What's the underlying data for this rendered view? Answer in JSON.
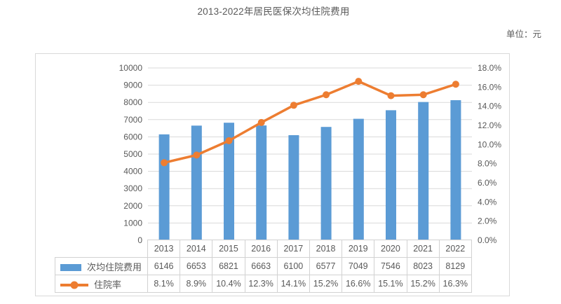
{
  "chart_data": {
    "type": "combo-bar-line",
    "title": "2013-2022年居民医保次均住院费用",
    "unit_label": "单位：元",
    "categories": [
      "2013",
      "2014",
      "2015",
      "2016",
      "2017",
      "2018",
      "2019",
      "2020",
      "2021",
      "2022"
    ],
    "series": [
      {
        "name": "次均住院费用",
        "type": "bar",
        "axis": "left",
        "color": "#5B9BD5",
        "values": [
          6146,
          6653,
          6821,
          6663,
          6100,
          6577,
          7049,
          7546,
          8023,
          8129
        ]
      },
      {
        "name": "住院率",
        "type": "line",
        "axis": "right",
        "color": "#ED7D31",
        "values": [
          8.1,
          8.9,
          10.4,
          12.3,
          14.1,
          15.2,
          16.6,
          15.1,
          15.2,
          16.3
        ],
        "labels": [
          "8.1%",
          "8.9%",
          "10.4%",
          "12.3%",
          "14.1%",
          "15.2%",
          "16.6%",
          "15.1%",
          "15.2%",
          "16.3%"
        ]
      }
    ],
    "left_axis": {
      "min": 0,
      "max": 10000,
      "step": 1000,
      "ticks": [
        "0",
        "1000",
        "2000",
        "3000",
        "4000",
        "5000",
        "6000",
        "7000",
        "8000",
        "9000",
        "10000"
      ]
    },
    "right_axis": {
      "min": 0,
      "max": 18,
      "step": 2,
      "ticks": [
        "0.0%",
        "2.0%",
        "4.0%",
        "6.0%",
        "8.0%",
        "10.0%",
        "12.0%",
        "14.0%",
        "16.0%",
        "18.0%"
      ]
    },
    "grid": true,
    "legend_position": "table-left",
    "colors": {
      "grid": "#d9d9d9",
      "text": "#595959",
      "box_border": "#d9d9d9",
      "table_border": "#d2d2d2",
      "background": "#ffffff"
    }
  }
}
